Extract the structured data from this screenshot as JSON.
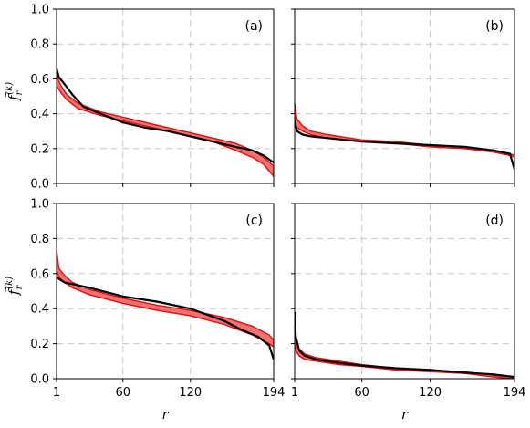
{
  "chart_data": [
    {
      "type": "line",
      "panel": "(a)",
      "ylabel": "f̃_r^(k)",
      "xlabel": "",
      "xlim": [
        1,
        194
      ],
      "ylim": [
        0,
        1.0
      ],
      "x_ticks": [
        1,
        60,
        120,
        194
      ],
      "y_ticks": [
        "0.0",
        "0.2",
        "0.4",
        "0.6",
        "0.8",
        "1.0"
      ],
      "show_x_ticklabels": false,
      "show_y_ticklabels": true,
      "grid": true,
      "band": {
        "color": "#f24040",
        "x": [
          1,
          5,
          10,
          20,
          40,
          60,
          80,
          100,
          120,
          140,
          160,
          175,
          185,
          194
        ],
        "lower": [
          0.56,
          0.52,
          0.48,
          0.43,
          0.39,
          0.36,
          0.33,
          0.3,
          0.27,
          0.24,
          0.19,
          0.15,
          0.11,
          0.04
        ],
        "upper": [
          0.62,
          0.56,
          0.51,
          0.46,
          0.41,
          0.38,
          0.35,
          0.32,
          0.29,
          0.26,
          0.23,
          0.19,
          0.15,
          0.1
        ]
      },
      "empirical": {
        "color": "#000000",
        "x": [
          1,
          3,
          8,
          15,
          25,
          40,
          60,
          80,
          100,
          120,
          140,
          160,
          175,
          185,
          194
        ],
        "y": [
          0.66,
          0.61,
          0.57,
          0.51,
          0.44,
          0.4,
          0.35,
          0.32,
          0.3,
          0.27,
          0.24,
          0.21,
          0.19,
          0.16,
          0.12
        ]
      }
    },
    {
      "type": "line",
      "panel": "(b)",
      "xlim": [
        1,
        194
      ],
      "ylim": [
        0,
        1.0
      ],
      "x_ticks": [
        1,
        60,
        120,
        194
      ],
      "show_x_ticklabels": false,
      "show_y_ticklabels": false,
      "grid": true,
      "band": {
        "color": "#f24040",
        "x": [
          1,
          3,
          8,
          15,
          30,
          60,
          90,
          120,
          150,
          175,
          190,
          194
        ],
        "lower": [
          0.35,
          0.32,
          0.3,
          0.28,
          0.26,
          0.24,
          0.23,
          0.21,
          0.2,
          0.18,
          0.16,
          0.15
        ],
        "upper": [
          0.46,
          0.37,
          0.33,
          0.3,
          0.28,
          0.25,
          0.24,
          0.22,
          0.21,
          0.19,
          0.17,
          0.16
        ]
      },
      "empirical": {
        "color": "#000000",
        "x": [
          1,
          3,
          8,
          15,
          30,
          60,
          90,
          120,
          150,
          175,
          190,
          194
        ],
        "y": [
          0.36,
          0.3,
          0.28,
          0.27,
          0.26,
          0.24,
          0.23,
          0.22,
          0.21,
          0.19,
          0.17,
          0.08
        ]
      }
    },
    {
      "type": "line",
      "panel": "(c)",
      "ylabel": "f̃_r^(k)",
      "xlabel": "r",
      "xlim": [
        1,
        194
      ],
      "ylim": [
        0,
        1.0
      ],
      "x_ticks": [
        1,
        60,
        120,
        194
      ],
      "y_ticks": [
        "0.0",
        "0.2",
        "0.4",
        "0.6",
        "0.8",
        "1.0"
      ],
      "show_x_ticklabels": true,
      "show_y_ticklabels": true,
      "grid": true,
      "band": {
        "color": "#f24040",
        "x": [
          1,
          3,
          8,
          15,
          30,
          60,
          90,
          120,
          150,
          175,
          190,
          194
        ],
        "lower": [
          0.62,
          0.58,
          0.55,
          0.52,
          0.48,
          0.43,
          0.39,
          0.36,
          0.31,
          0.25,
          0.2,
          0.18
        ],
        "upper": [
          0.74,
          0.63,
          0.59,
          0.55,
          0.51,
          0.46,
          0.42,
          0.39,
          0.35,
          0.3,
          0.25,
          0.22
        ]
      },
      "empirical": {
        "color": "#000000",
        "x": [
          1,
          3,
          8,
          15,
          30,
          60,
          90,
          120,
          150,
          165,
          180,
          190,
          194
        ],
        "y": [
          0.58,
          0.57,
          0.55,
          0.54,
          0.52,
          0.47,
          0.44,
          0.4,
          0.33,
          0.28,
          0.24,
          0.19,
          0.11
        ]
      }
    },
    {
      "type": "line",
      "panel": "(d)",
      "xlabel": "r",
      "xlim": [
        1,
        194
      ],
      "ylim": [
        0,
        1.0
      ],
      "x_ticks": [
        1,
        60,
        120,
        194
      ],
      "show_x_ticklabels": true,
      "show_y_ticklabels": false,
      "grid": true,
      "band": {
        "color": "#f24040",
        "x": [
          1,
          2,
          5,
          10,
          20,
          40,
          60,
          90,
          120,
          150,
          175,
          194
        ],
        "lower": [
          0.18,
          0.16,
          0.13,
          0.11,
          0.1,
          0.08,
          0.07,
          0.05,
          0.04,
          0.03,
          0.01,
          0.0
        ],
        "upper": [
          0.26,
          0.22,
          0.17,
          0.14,
          0.12,
          0.1,
          0.08,
          0.06,
          0.05,
          0.04,
          0.02,
          0.01
        ]
      },
      "empirical": {
        "color": "#000000",
        "x": [
          1,
          2,
          5,
          10,
          20,
          40,
          60,
          90,
          120,
          150,
          175,
          194
        ],
        "y": [
          0.38,
          0.24,
          0.16,
          0.13,
          0.11,
          0.09,
          0.075,
          0.06,
          0.05,
          0.035,
          0.025,
          0.01
        ]
      }
    }
  ]
}
